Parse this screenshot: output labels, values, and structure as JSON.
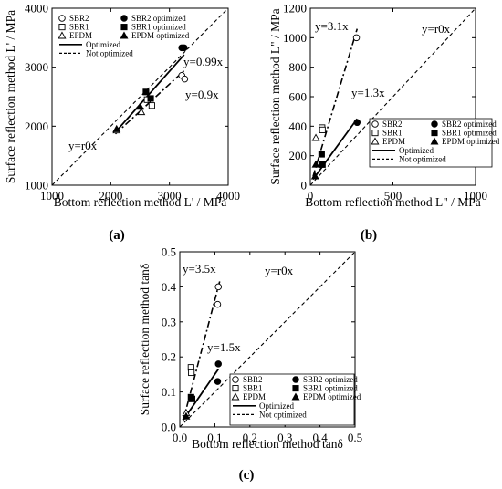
{
  "chart_data": [
    {
      "panel_label": "(a)",
      "type": "scatter",
      "xlabel": "Bottom reflection method L' / MPa",
      "ylabel": "Surface reflection method  L' / MPa",
      "xlim": [
        1000,
        4000
      ],
      "ylim": [
        1000,
        4000
      ],
      "xticks": [
        "1000",
        "2000",
        "3000",
        "4000"
      ],
      "yticks": [
        "1000",
        "2000",
        "3000",
        "4000"
      ],
      "legend": {
        "position": "top-left",
        "items": [
          "SBR2",
          "SBR2 optimized",
          "SBR1",
          "SBR1 optimized",
          "EPDM",
          "EPDM optimized",
          "Optimized",
          "Not optimized"
        ]
      },
      "series": [
        {
          "name": "SBR2",
          "marker": "circle-open",
          "points": [
            [
              3210,
              2860
            ],
            [
              3260,
              2800
            ]
          ]
        },
        {
          "name": "SBR2 optimized",
          "marker": "circle-filled",
          "points": [
            [
              3210,
              3330
            ],
            [
              3250,
              3330
            ]
          ]
        },
        {
          "name": "SBR1",
          "marker": "square-open",
          "points": [
            [
              2620,
              2450
            ],
            [
              2700,
              2350
            ]
          ]
        },
        {
          "name": "SBR1 optimized",
          "marker": "square-filled",
          "points": [
            [
              2600,
              2580
            ],
            [
              2680,
              2470
            ]
          ]
        },
        {
          "name": "EPDM",
          "marker": "triangle-open",
          "points": [
            [
              2100,
              1930
            ],
            [
              2520,
              2240
            ]
          ]
        },
        {
          "name": "EPDM optimized",
          "marker": "triangle-filled",
          "points": [
            [
              2100,
              1950
            ],
            [
              2500,
              2330
            ]
          ]
        }
      ],
      "lines": [
        {
          "name": "Optimized",
          "style": "solid",
          "from": [
            2080,
            1900
          ],
          "to": [
            3250,
            3210
          ]
        },
        {
          "name": "Not optimized",
          "style": "dash-dot",
          "from": [
            2080,
            1870
          ],
          "to": [
            3270,
            2960
          ]
        },
        {
          "name": "y=r0x",
          "style": "dashed",
          "from": [
            1000,
            1000
          ],
          "to": [
            4000,
            4000
          ]
        }
      ],
      "annotations": [
        "y=0.99x",
        "y=0.9x",
        "y=r0x"
      ]
    },
    {
      "panel_label": "(b)",
      "type": "scatter",
      "xlabel": "Bottom reflection method L\" / MPa",
      "ylabel": "Surface reflection method  L\" / MPa",
      "xlim": [
        0,
        1200
      ],
      "ylim": [
        0,
        1200
      ],
      "xticks": [
        "0",
        "500",
        "1000"
      ],
      "yticks": [
        "0",
        "200",
        "400",
        "600",
        "800",
        "1000",
        "1200"
      ],
      "legend": {
        "position": "bottom-right",
        "items": [
          "SBR2",
          "SBR2 optimized",
          "SBR1",
          "SBR1 optimized",
          "EPDM",
          "EPDM optimized",
          "Optimized",
          "Not optimized"
        ]
      },
      "series": [
        {
          "name": "SBR2",
          "marker": "circle-open",
          "points": [
            [
              335,
              1000
            ]
          ]
        },
        {
          "name": "SBR2 optimized",
          "marker": "circle-filled",
          "points": [
            [
              340,
              425
            ]
          ]
        },
        {
          "name": "SBR1",
          "marker": "square-open",
          "points": [
            [
              85,
              390
            ],
            [
              88,
              375
            ]
          ]
        },
        {
          "name": "SBR1 optimized",
          "marker": "square-filled",
          "points": [
            [
              82,
              210
            ],
            [
              88,
              140
            ]
          ]
        },
        {
          "name": "EPDM",
          "marker": "triangle-open",
          "points": [
            [
              40,
              320
            ]
          ]
        },
        {
          "name": "EPDM optimized",
          "marker": "triangle-filled",
          "points": [
            [
              40,
              140
            ],
            [
              35,
              60
            ]
          ]
        }
      ],
      "lines": [
        {
          "name": "Optimized",
          "style": "solid",
          "from": [
            20,
            40
          ],
          "to": [
            340,
            450
          ]
        },
        {
          "name": "Not optimized",
          "style": "dash-dot",
          "from": [
            20,
            60
          ],
          "to": [
            340,
            1060
          ]
        },
        {
          "name": "y=r0x",
          "style": "dashed",
          "from": [
            0,
            0
          ],
          "to": [
            1200,
            1200
          ]
        }
      ],
      "annotations": [
        "y=3.1x",
        "y=1.3x",
        "y=r0x"
      ]
    },
    {
      "panel_label": "(c)",
      "type": "scatter",
      "xlabel": "Bottom reflection method tanδ",
      "ylabel": "Surface reflection method tanδ",
      "xlim": [
        0,
        0.5
      ],
      "ylim": [
        0,
        0.5
      ],
      "xticks": [
        "0.0",
        "0.1",
        "0.2",
        "0.3",
        "0.4",
        "0.5"
      ],
      "yticks": [
        "0.0",
        "0.1",
        "0.2",
        "0.3",
        "0.4",
        "0.5"
      ],
      "legend": {
        "position": "bottom-right",
        "items": [
          "SBR2",
          "SBR2 optimized",
          "SBR1",
          "SBR1 optimized",
          "EPDM",
          "EPDM optimized",
          "Optimized",
          "Not optimized"
        ]
      },
      "series": [
        {
          "name": "SBR2",
          "marker": "circle-open",
          "points": [
            [
              0.11,
              0.4
            ],
            [
              0.108,
              0.35
            ]
          ]
        },
        {
          "name": "SBR2 optimized",
          "marker": "circle-filled",
          "points": [
            [
              0.11,
              0.18
            ],
            [
              0.108,
              0.13
            ]
          ]
        },
        {
          "name": "SBR1",
          "marker": "square-open",
          "points": [
            [
              0.032,
              0.17
            ],
            [
              0.033,
              0.155
            ]
          ]
        },
        {
          "name": "SBR1 optimized",
          "marker": "square-filled",
          "points": [
            [
              0.032,
              0.085
            ],
            [
              0.035,
              0.08
            ]
          ]
        },
        {
          "name": "EPDM",
          "marker": "triangle-open",
          "points": [
            [
              0.018,
              0.04
            ]
          ]
        },
        {
          "name": "EPDM optimized",
          "marker": "triangle-filled",
          "points": [
            [
              0.018,
              0.03
            ]
          ]
        }
      ],
      "lines": [
        {
          "name": "Optimized",
          "style": "solid",
          "from": [
            0.01,
            0.02
          ],
          "to": [
            0.11,
            0.165
          ]
        },
        {
          "name": "Not optimized",
          "style": "dash-dot",
          "from": [
            0.01,
            0.02
          ],
          "to": [
            0.115,
            0.42
          ]
        },
        {
          "name": "y=r0x",
          "style": "dashed",
          "from": [
            0,
            0
          ],
          "to": [
            0.5,
            0.5
          ]
        }
      ],
      "annotations": [
        "y=3.5x",
        "y=1.5x",
        "y=r0x"
      ]
    }
  ]
}
